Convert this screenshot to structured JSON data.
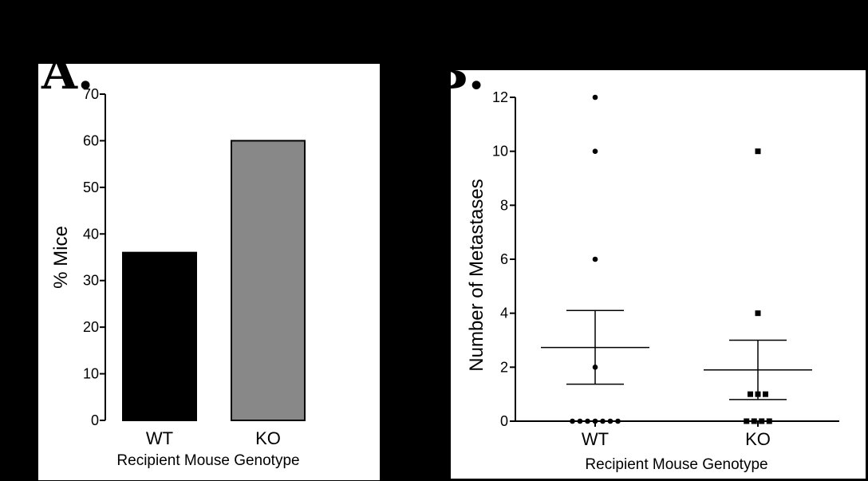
{
  "panels": {
    "a_letter": "A.",
    "b_letter": "B."
  },
  "chart_data": [
    {
      "type": "bar",
      "categories": [
        "WT",
        "KO"
      ],
      "values": [
        36,
        60
      ],
      "bar_colors": [
        "#000000",
        "#888888"
      ],
      "ylabel": "% Mice",
      "xlabel": "Recipient Mouse Genotype",
      "ylim": [
        0,
        70
      ],
      "yticks": [
        0,
        10,
        20,
        30,
        40,
        50,
        60,
        70
      ],
      "grid": false
    },
    {
      "type": "scatter",
      "categories": [
        "WT",
        "KO"
      ],
      "series": [
        {
          "category": "WT",
          "marker": "circle",
          "values": [
            12,
            10,
            6,
            2,
            0,
            0,
            0,
            0,
            0,
            0,
            0
          ],
          "mean": 2.73,
          "sem_upper": 4.1,
          "sem_lower": 1.37
        },
        {
          "category": "KO",
          "marker": "square",
          "values": [
            10,
            4,
            1,
            1,
            1,
            0,
            0,
            0,
            0
          ],
          "mean": 1.9,
          "sem_upper": 3.0,
          "sem_lower": 0.8
        }
      ],
      "ylabel": "Number of Metastases",
      "xlabel": "Recipient Mouse Genotype",
      "ylim": [
        0,
        12
      ],
      "yticks": [
        0,
        2,
        4,
        6,
        8,
        10,
        12
      ],
      "grid": false
    }
  ]
}
